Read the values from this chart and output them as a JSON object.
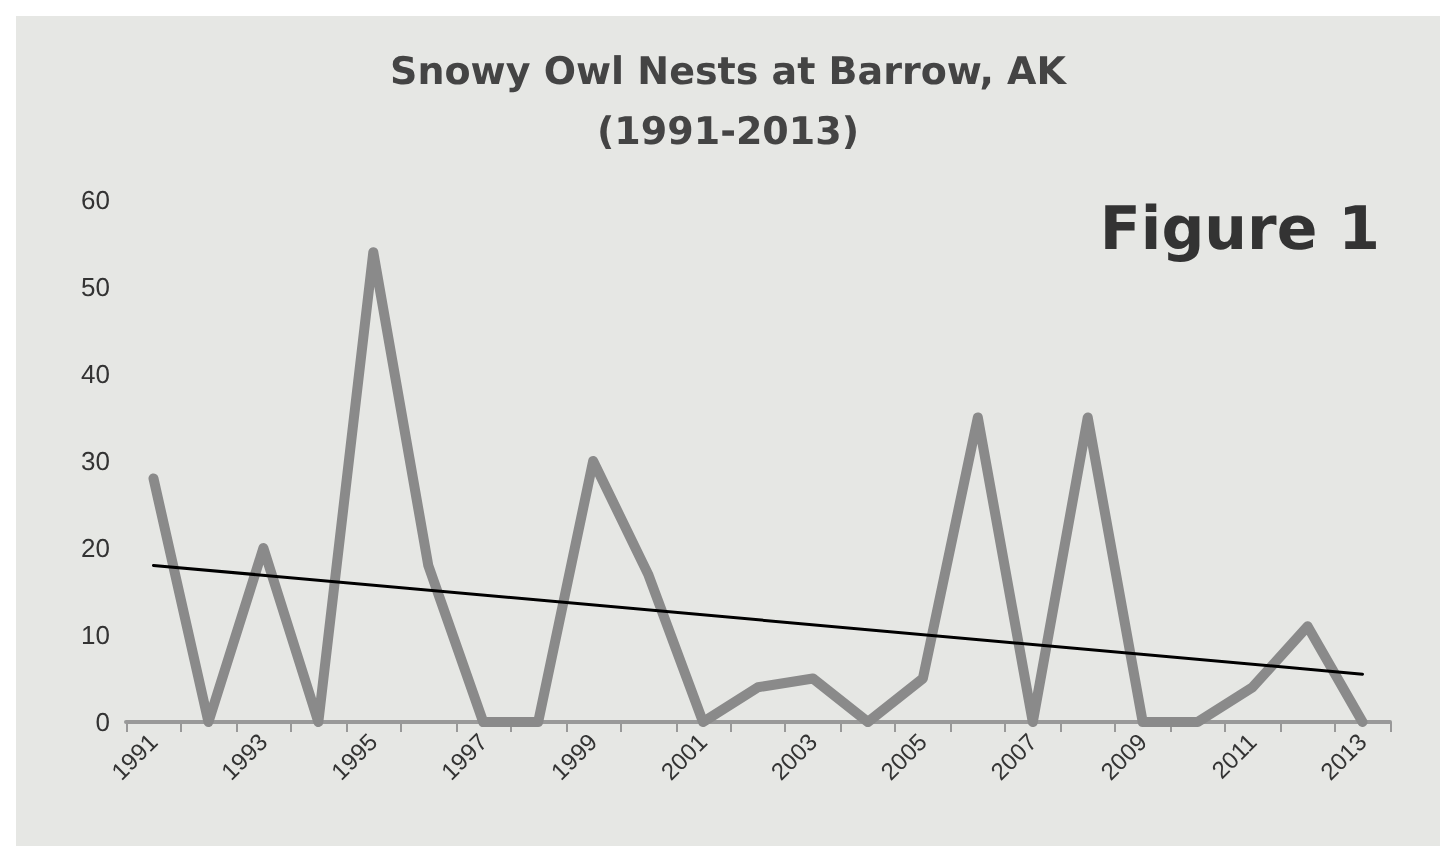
{
  "chart_data": {
    "type": "line",
    "title": "Snowy Owl Nests at Barrow, AK\n(1991-2013)",
    "annotations": [
      "Figure 1"
    ],
    "categories": [
      "1991",
      null,
      "1993",
      null,
      "1995",
      null,
      "1997",
      null,
      "1999",
      null,
      "2001",
      null,
      "2003",
      null,
      "2005",
      null,
      "2007",
      null,
      "2009",
      null,
      "2011",
      null,
      "2013"
    ],
    "series": [
      {
        "color": "#8a8a8a",
        "values": [
          28,
          0,
          20,
          0,
          54,
          18,
          0,
          0,
          30,
          17,
          0,
          4,
          5,
          0,
          5,
          35,
          0,
          35,
          0,
          0,
          4,
          11,
          0
        ]
      },
      {
        "color": "#000000",
        "values": [
          18,
          null,
          null,
          null,
          null,
          null,
          null,
          null,
          null,
          null,
          null,
          null,
          null,
          null,
          null,
          null,
          null,
          null,
          null,
          null,
          null,
          null,
          5.5
        ]
      }
    ],
    "ylim": [
      0,
      60
    ],
    "yticks": [
      0,
      10,
      20,
      30,
      40,
      50,
      60
    ],
    "grid": false,
    "marker": "none",
    "line_style": "solid"
  }
}
